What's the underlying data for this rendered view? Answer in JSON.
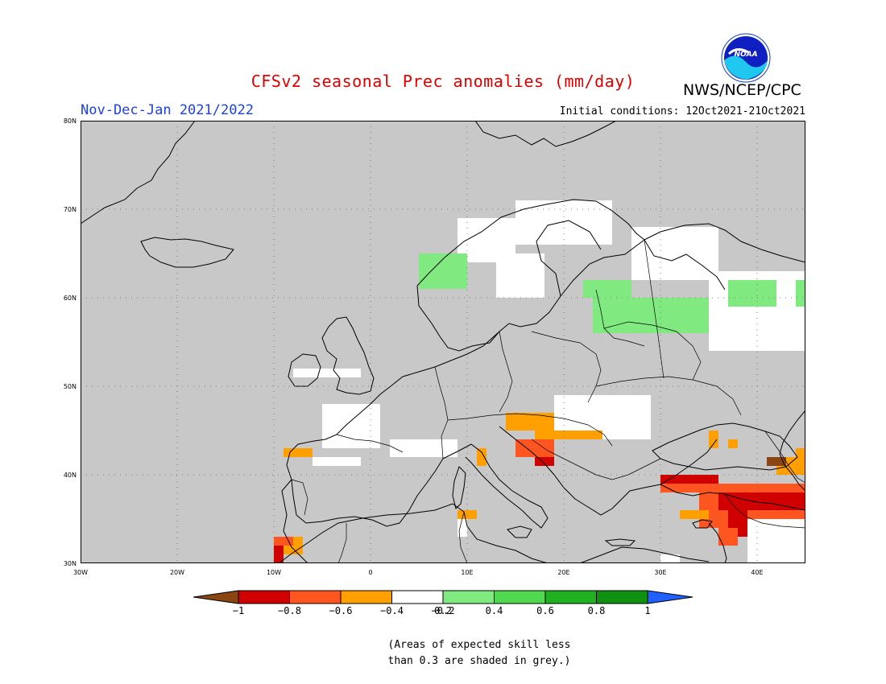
{
  "title": "CFSv2 seasonal Prec anomalies (mm/day)",
  "subtitle": "Nov-Dec-Jan 2021/2022",
  "initial_conditions": "Initial conditions: 12Oct2021-21Oct2021",
  "agency": "NWS/NCEP/CPC",
  "logo_text": "NOAA",
  "map": {
    "lon_range": [
      -30,
      45
    ],
    "lat_range": [
      30,
      80
    ],
    "lat_labels": [
      {
        "value": 80,
        "label": "80N"
      },
      {
        "value": 70,
        "label": "70N"
      },
      {
        "value": 60,
        "label": "60N"
      },
      {
        "value": 50,
        "label": "50N"
      },
      {
        "value": 40,
        "label": "40N"
      },
      {
        "value": 30,
        "label": "30N"
      }
    ],
    "lon_labels": [
      {
        "value": -30,
        "label": "30W"
      },
      {
        "value": -20,
        "label": "20W"
      },
      {
        "value": -10,
        "label": "10W"
      },
      {
        "value": 0,
        "label": "0"
      },
      {
        "value": 10,
        "label": "10E"
      },
      {
        "value": 20,
        "label": "20E"
      },
      {
        "value": 30,
        "label": "30E"
      },
      {
        "value": 40,
        "label": "40E"
      }
    ],
    "background_color": "#c8c8c8",
    "regions": [
      {
        "lon": 9,
        "lat": 64,
        "w": 6,
        "h": 5,
        "color": "#ffffff"
      },
      {
        "lon": 15,
        "lat": 66,
        "w": 10,
        "h": 5,
        "color": "#ffffff"
      },
      {
        "lon": 13,
        "lat": 60,
        "w": 5,
        "h": 5,
        "color": "#ffffff"
      },
      {
        "lon": 35,
        "lat": 54,
        "w": 10,
        "h": 9,
        "color": "#ffffff"
      },
      {
        "lon": 27,
        "lat": 62,
        "w": 9,
        "h": 6,
        "color": "#ffffff"
      },
      {
        "lon": 5,
        "lat": 61,
        "w": 5,
        "h": 4,
        "color": "#80ea80"
      },
      {
        "lon": 22,
        "lat": 60,
        "w": 5,
        "h": 2,
        "color": "#80ea80"
      },
      {
        "lon": 23,
        "lat": 56,
        "w": 12,
        "h": 4,
        "color": "#80ea80"
      },
      {
        "lon": 37,
        "lat": 59,
        "w": 5,
        "h": 3,
        "color": "#80ea80"
      },
      {
        "lon": 44,
        "lat": 59,
        "w": 1,
        "h": 3,
        "color": "#80ea80"
      },
      {
        "lon": -8,
        "lat": 51,
        "w": 7,
        "h": 1,
        "color": "#ffffff"
      },
      {
        "lon": -5,
        "lat": 43,
        "w": 6,
        "h": 5,
        "color": "#ffffff"
      },
      {
        "lon": 2,
        "lat": 42,
        "w": 7,
        "h": 2,
        "color": "#ffffff"
      },
      {
        "lon": -4,
        "lat": 41,
        "w": 3,
        "h": 1,
        "color": "#ffffff"
      },
      {
        "lon": -6,
        "lat": 41,
        "w": 2,
        "h": 1,
        "color": "#ffffff"
      },
      {
        "lon": 19,
        "lat": 44,
        "w": 10,
        "h": 5,
        "color": "#ffffff"
      },
      {
        "lon": 14,
        "lat": 45,
        "w": 5,
        "h": 2,
        "color": "#ffa000"
      },
      {
        "lon": 17,
        "lat": 44,
        "w": 7,
        "h": 1,
        "color": "#ffa000"
      },
      {
        "lon": 15,
        "lat": 42,
        "w": 4,
        "h": 2,
        "color": "#ff5520"
      },
      {
        "lon": 17,
        "lat": 41,
        "w": 2,
        "h": 1,
        "color": "#d00000"
      },
      {
        "lon": 11,
        "lat": 41,
        "w": 1,
        "h": 2,
        "color": "#ffa000"
      },
      {
        "lon": -9,
        "lat": 42,
        "w": 3,
        "h": 1,
        "color": "#ffa000"
      },
      {
        "lon": 9,
        "lat": 35,
        "w": 2,
        "h": 1,
        "color": "#ffa000"
      },
      {
        "lon": 9,
        "lat": 33,
        "w": 1,
        "h": 2,
        "color": "#ffffff"
      },
      {
        "lon": -10,
        "lat": 31,
        "w": 3,
        "h": 2,
        "color": "#ffa000"
      },
      {
        "lon": -10,
        "lat": 32,
        "w": 2,
        "h": 1,
        "color": "#ff5520"
      },
      {
        "lon": -10,
        "lat": 30,
        "w": 1,
        "h": 2,
        "color": "#d00000"
      },
      {
        "lon": 30,
        "lat": 38,
        "w": 5,
        "h": 2,
        "color": "#ff5520"
      },
      {
        "lon": 30,
        "lat": 39,
        "w": 6,
        "h": 1,
        "color": "#d00000"
      },
      {
        "lon": 34,
        "lat": 34,
        "w": 11,
        "h": 5,
        "color": "#ff5520"
      },
      {
        "lon": 36,
        "lat": 36,
        "w": 9,
        "h": 2,
        "color": "#d00000"
      },
      {
        "lon": 37,
        "lat": 33,
        "w": 2,
        "h": 4,
        "color": "#d00000"
      },
      {
        "lon": 36,
        "lat": 32,
        "w": 2,
        "h": 2,
        "color": "#ff5520"
      },
      {
        "lon": 32,
        "lat": 35,
        "w": 3,
        "h": 1,
        "color": "#ffa000"
      },
      {
        "lon": 39,
        "lat": 30,
        "w": 6,
        "h": 5,
        "color": "#ffffff"
      },
      {
        "lon": 42,
        "lat": 40,
        "w": 3,
        "h": 2,
        "color": "#ffa000"
      },
      {
        "lon": 41,
        "lat": 41,
        "w": 2,
        "h": 1,
        "color": "#8b4513"
      },
      {
        "lon": 44,
        "lat": 42,
        "w": 1,
        "h": 1,
        "color": "#ffa000"
      },
      {
        "lon": 35,
        "lat": 43,
        "w": 1,
        "h": 2,
        "color": "#ffa000"
      },
      {
        "lon": 37,
        "lat": 43,
        "w": 1,
        "h": 1,
        "color": "#ffa000"
      },
      {
        "lon": 30,
        "lat": 30,
        "w": 2,
        "h": 1,
        "color": "#ffffff"
      }
    ]
  },
  "colorbar": {
    "colors": [
      "#d00000",
      "#ff5520",
      "#ffa000",
      "#ffffff",
      "#80ea80",
      "#50d850",
      "#20b020",
      "#109010"
    ],
    "left_arrow_color": "#8b4513",
    "right_arrow_color": "#2060ff",
    "labels": [
      "−1",
      "−0.8",
      "−0.6",
      "−0.4",
      "−0.2",
      "0.2",
      "0.4",
      "0.6",
      "0.8",
      "1"
    ]
  },
  "footnote_line1": "(Areas of expected skill less",
  "footnote_line2": "than 0.3 are shaded in grey.)"
}
